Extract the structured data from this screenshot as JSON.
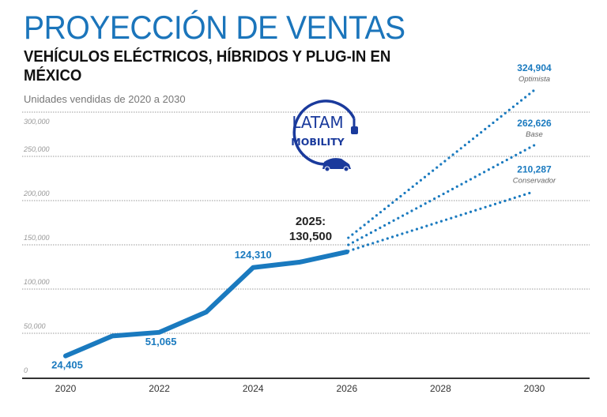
{
  "header": {
    "title": "PROYECCIÓN DE VENTAS",
    "subtitle": "VEHÍCULOS ELÉCTRICOS, HÍBRIDOS Y PLUG-IN EN MÉXICO",
    "caption": "Unidades vendidas de 2020 a 2030"
  },
  "logo": {
    "text": "LATAM MOBILITY",
    "color": "#1a3a9c"
  },
  "chart_data": {
    "type": "line",
    "title": "PROYECCIÓN DE VENTAS",
    "xlim": [
      2020,
      2030
    ],
    "ylim": [
      0,
      300000
    ],
    "x_ticks": [
      "2020",
      "2022",
      "2024",
      "2026",
      "2028",
      "2030"
    ],
    "y_ticks": [
      "0",
      "50,000",
      "100,000",
      "150,000",
      "200,000",
      "250,000",
      "300,000"
    ],
    "grid": true,
    "colors": {
      "actual": "#1a7abf",
      "label": "#1a7abf"
    },
    "series": [
      {
        "x": [
          2020,
          2021,
          2022,
          2023,
          2024,
          2025,
          2026
        ],
        "values": [
          24405,
          47000,
          51065,
          74000,
          124310,
          130500,
          142000
        ],
        "style": "solid"
      }
    ],
    "projections": [
      {
        "name": "Optimista",
        "x": [
          2026,
          2030
        ],
        "values": [
          158000,
          324904
        ],
        "style": "dotted",
        "label": "324,904"
      },
      {
        "name": "Base",
        "x": [
          2026,
          2030
        ],
        "values": [
          150000,
          262626
        ],
        "style": "dotted",
        "label": "262,626"
      },
      {
        "name": "Conservador",
        "x": [
          2026,
          2030
        ],
        "values": [
          143000,
          210287
        ],
        "style": "dotted",
        "label": "210,287"
      }
    ],
    "data_labels": [
      {
        "x": 2020,
        "text": "24,405"
      },
      {
        "x": 2022,
        "text": "51,065"
      },
      {
        "x": 2024,
        "text": "124,310"
      }
    ],
    "annotation": {
      "line1": "2025:",
      "line2": "130,500"
    }
  }
}
